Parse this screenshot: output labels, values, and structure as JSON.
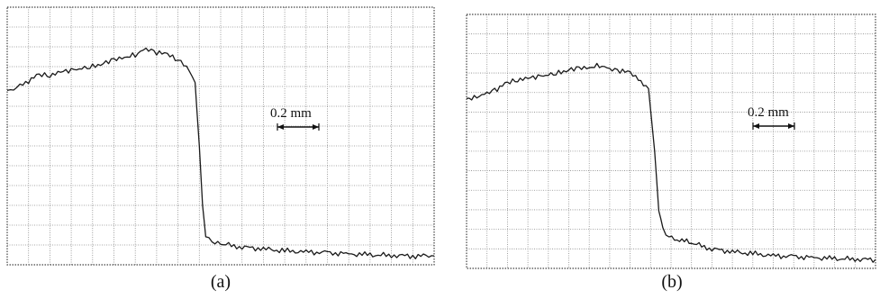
{
  "panels": [
    {
      "label": "(a)",
      "scale_label": "0.2 mm"
    },
    {
      "label": "(b)",
      "scale_label": "0.2 mm"
    }
  ],
  "colors": {
    "trace": "#1a1a1a",
    "grid": "#8a8a8a",
    "frame": "#444444"
  },
  "chart_data": [
    {
      "type": "line",
      "grid": true,
      "xlim": [
        0,
        20
      ],
      "ylim": [
        0,
        13
      ],
      "series": [
        {
          "x": [
            0,
            0.3,
            0.6,
            1.0,
            1.5,
            2.0,
            2.5,
            3.0,
            3.5,
            4.0,
            4.5,
            5.0,
            5.5,
            6.0,
            6.5,
            7.0,
            7.5,
            8.0,
            8.4,
            8.8,
            9.0,
            9.15,
            9.3,
            9.6,
            10.0,
            11.0,
            12.0,
            13.0,
            14.0,
            15.0,
            16.0,
            17.0,
            18.0,
            19.0,
            20.0
          ],
          "y": [
            8.8,
            8.9,
            9.1,
            9.3,
            9.6,
            9.5,
            9.7,
            9.8,
            9.9,
            10.0,
            10.2,
            10.4,
            10.5,
            10.6,
            10.9,
            10.7,
            10.6,
            10.3,
            10.0,
            9.2,
            6.0,
            3.0,
            1.5,
            1.2,
            1.05,
            0.9,
            0.8,
            0.7,
            0.65,
            0.6,
            0.55,
            0.5,
            0.47,
            0.45,
            0.45
          ]
        }
      ]
    },
    {
      "type": "line",
      "grid": true,
      "xlim": [
        0,
        20
      ],
      "ylim": [
        0,
        13
      ],
      "series": [
        {
          "x": [
            0,
            0.5,
            1.0,
            1.5,
            2.0,
            2.5,
            3.0,
            3.5,
            4.0,
            4.5,
            5.0,
            5.5,
            6.0,
            6.5,
            7.0,
            7.5,
            8.0,
            8.4,
            8.9,
            9.2,
            9.4,
            9.6,
            9.9,
            10.3,
            11.0,
            12.0,
            13.0,
            14.0,
            15.0,
            16.0,
            17.0,
            18.0,
            19.0,
            20.0
          ],
          "y": [
            8.7,
            8.8,
            9.0,
            9.2,
            9.5,
            9.6,
            9.7,
            9.8,
            9.9,
            10.0,
            10.2,
            10.3,
            10.3,
            10.4,
            10.2,
            10.1,
            10.0,
            9.6,
            9.2,
            6.0,
            3.0,
            2.0,
            1.7,
            1.5,
            1.3,
            1.0,
            0.85,
            0.75,
            0.65,
            0.6,
            0.55,
            0.5,
            0.47,
            0.45
          ]
        }
      ]
    }
  ]
}
